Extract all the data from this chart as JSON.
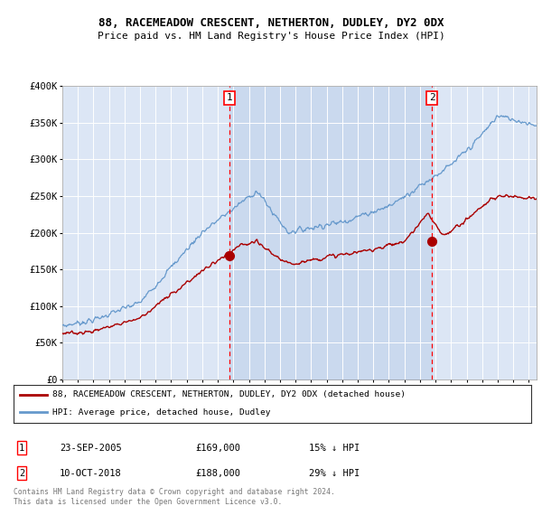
{
  "title": "88, RACEMEADOW CRESCENT, NETHERTON, DUDLEY, DY2 0DX",
  "subtitle": "Price paid vs. HM Land Registry's House Price Index (HPI)",
  "background_color": "#ffffff",
  "plot_bg_color": "#dce6f5",
  "ylim": [
    0,
    400000
  ],
  "yticks": [
    0,
    50000,
    100000,
    150000,
    200000,
    250000,
    300000,
    350000,
    400000
  ],
  "ytick_labels": [
    "£0",
    "£50K",
    "£100K",
    "£150K",
    "£200K",
    "£250K",
    "£300K",
    "£350K",
    "£400K"
  ],
  "xlim_start": 1995.0,
  "xlim_end": 2025.5,
  "sale1_x": 2005.73,
  "sale1_y": 169000,
  "sale1_label": "1",
  "sale1_date": "23-SEP-2005",
  "sale1_price": "£169,000",
  "sale1_hpi": "15% ↓ HPI",
  "sale2_x": 2018.78,
  "sale2_y": 188000,
  "sale2_label": "2",
  "sale2_date": "10-OCT-2018",
  "sale2_price": "£188,000",
  "sale2_hpi": "29% ↓ HPI",
  "legend_line1": "88, RACEMEADOW CRESCENT, NETHERTON, DUDLEY, DY2 0DX (detached house)",
  "legend_line2": "HPI: Average price, detached house, Dudley",
  "footer": "Contains HM Land Registry data © Crown copyright and database right 2024.\nThis data is licensed under the Open Government Licence v3.0.",
  "red_color": "#aa0000",
  "blue_color": "#6699cc",
  "fill_color": "#c8d8f0",
  "shade_between_sales": true,
  "font_family": "DejaVu Sans Mono"
}
